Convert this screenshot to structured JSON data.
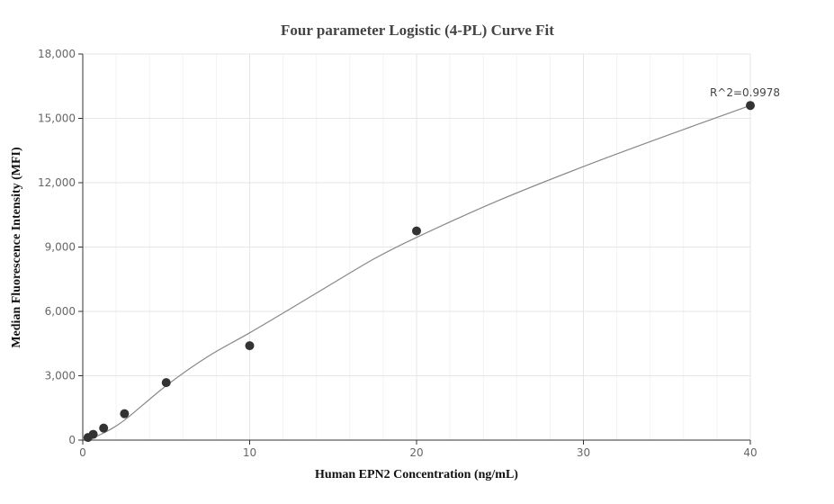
{
  "chart_data": {
    "type": "scatter",
    "title": "Four parameter Logistic (4-PL) Curve Fit",
    "xlabel": "Human EPN2 Concentration (ng/mL)",
    "ylabel": "Median Fluorescence Intensity (MFI)",
    "xlim": [
      0,
      40
    ],
    "ylim": [
      0,
      18000
    ],
    "x_ticks": [
      0,
      10,
      20,
      30,
      40
    ],
    "x_tick_labels": [
      "0",
      "10",
      "20",
      "30",
      "40"
    ],
    "y_ticks": [
      0,
      3000,
      6000,
      9000,
      12000,
      15000,
      18000
    ],
    "y_tick_labels": [
      "0",
      "3,000",
      "6,000",
      "9,000",
      "12,000",
      "15,000",
      "18,000"
    ],
    "grid": true,
    "series": [
      {
        "x": [
          0.3125,
          0.625,
          1.25,
          2.5,
          5,
          10,
          20,
          40
        ],
        "y": [
          120,
          270,
          560,
          1230,
          2680,
          4400,
          9750,
          15600
        ]
      }
    ],
    "fit_curve": {
      "x": [
        0.3125,
        1.25,
        2.5,
        5,
        7.5,
        10,
        12.5,
        15,
        17.5,
        20,
        25,
        30,
        35,
        40
      ],
      "y": [
        40,
        330,
        930,
        2540,
        3900,
        5000,
        6150,
        7320,
        8470,
        9450,
        11200,
        12750,
        14200,
        15600
      ]
    },
    "annotation": "R^2=0.9978",
    "colors": {
      "point": "#333333",
      "curve": "#888888",
      "grid": "#e6e6e6"
    }
  }
}
